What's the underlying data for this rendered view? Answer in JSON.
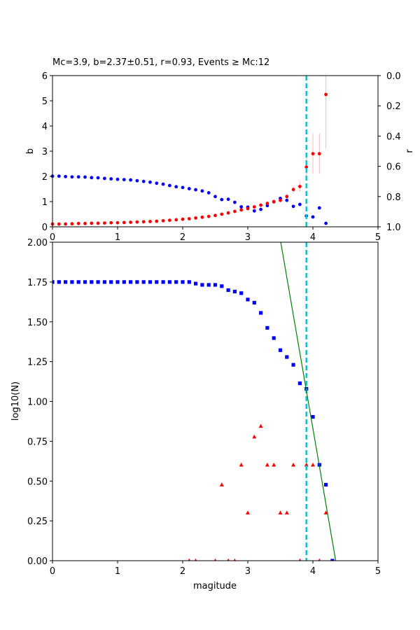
{
  "chart_data": [
    {
      "type": "scatter",
      "title": "Mc=3.9, b=2.37±0.51, r=0.93, Events ≥ Mc:12",
      "xlabel": "",
      "ylabel": "b",
      "ylabel_right": "r",
      "xlim": [
        0,
        5
      ],
      "ylim": [
        0,
        6
      ],
      "ylim_right": [
        1.0,
        0.0
      ],
      "x_ticks": [
        "0",
        "1",
        "2",
        "3",
        "4",
        "5"
      ],
      "y_ticks": [
        "0",
        "1",
        "2",
        "3",
        "4",
        "5",
        "6"
      ],
      "y_right_ticks": [
        "0.0",
        "0.2",
        "0.4",
        "0.6",
        "0.8",
        "1.0"
      ],
      "grid": false,
      "mc": 3.9,
      "mc_line_color": "#17becf",
      "series": [
        {
          "axis": "left",
          "color": "#ff0000",
          "marker": "circle",
          "x": [
            0.0,
            0.1,
            0.2,
            0.3,
            0.4,
            0.5,
            0.6,
            0.7,
            0.8,
            0.9,
            1.0,
            1.1,
            1.2,
            1.3,
            1.4,
            1.5,
            1.6,
            1.7,
            1.8,
            1.9,
            2.0,
            2.1,
            2.2,
            2.3,
            2.4,
            2.5,
            2.6,
            2.7,
            2.8,
            2.9,
            3.0,
            3.1,
            3.2,
            3.3,
            3.4,
            3.5,
            3.6,
            3.7,
            3.8,
            3.9,
            4.0,
            4.1,
            4.2
          ],
          "y": [
            0.11,
            0.11,
            0.11,
            0.12,
            0.13,
            0.13,
            0.14,
            0.14,
            0.15,
            0.16,
            0.16,
            0.17,
            0.18,
            0.19,
            0.2,
            0.21,
            0.22,
            0.24,
            0.26,
            0.28,
            0.3,
            0.32,
            0.35,
            0.38,
            0.41,
            0.45,
            0.5,
            0.55,
            0.61,
            0.67,
            0.72,
            0.79,
            0.86,
            0.93,
            1.0,
            1.05,
            1.2,
            1.48,
            1.6,
            2.37,
            2.9,
            2.9,
            5.25
          ],
          "err": [
            0,
            0,
            0,
            0,
            0,
            0,
            0,
            0,
            0,
            0,
            0,
            0,
            0,
            0,
            0,
            0,
            0,
            0,
            0,
            0,
            0,
            0,
            0,
            0,
            0,
            0,
            0.03,
            0.03,
            0.04,
            0.04,
            0.05,
            0.05,
            0.06,
            0.06,
            0.07,
            0.08,
            0.1,
            0.15,
            0.2,
            0.51,
            0.8,
            0.8,
            2.15
          ]
        },
        {
          "axis": "right",
          "color": "#0000ff",
          "marker": "circle",
          "x": [
            0.0,
            0.1,
            0.2,
            0.3,
            0.4,
            0.5,
            0.6,
            0.7,
            0.8,
            0.9,
            1.0,
            1.1,
            1.2,
            1.3,
            1.4,
            1.5,
            1.6,
            1.7,
            1.8,
            1.9,
            2.0,
            2.1,
            2.2,
            2.3,
            2.4,
            2.5,
            2.6,
            2.7,
            2.8,
            2.9,
            3.0,
            3.1,
            3.2,
            3.3,
            3.4,
            3.5,
            3.6,
            3.7,
            3.8,
            3.9,
            4.0,
            4.1,
            4.2
          ],
          "y": [
            0.665,
            0.665,
            0.668,
            0.67,
            0.67,
            0.671,
            0.675,
            0.676,
            0.68,
            0.683,
            0.686,
            0.688,
            0.69,
            0.695,
            0.7,
            0.705,
            0.712,
            0.718,
            0.727,
            0.735,
            0.74,
            0.748,
            0.755,
            0.763,
            0.775,
            0.8,
            0.82,
            0.818,
            0.838,
            0.868,
            0.87,
            0.895,
            0.885,
            0.86,
            0.835,
            0.812,
            0.825,
            0.865,
            0.852,
            0.928,
            0.935,
            0.875,
            0.977
          ]
        }
      ]
    },
    {
      "type": "scatter",
      "title": "",
      "xlabel": "magitude",
      "ylabel": "log10(N)",
      "xlim": [
        0,
        5
      ],
      "ylim": [
        0,
        2
      ],
      "x_ticks": [
        "0",
        "1",
        "2",
        "3",
        "4",
        "5"
      ],
      "y_ticks": [
        "0.00",
        "0.25",
        "0.50",
        "0.75",
        "1.00",
        "1.25",
        "1.50",
        "1.75",
        "2.00"
      ],
      "grid": false,
      "mc": 3.9,
      "mc_line_color": "#17becf",
      "fit_line": {
        "color": "#008000",
        "a": 10.31,
        "b": 2.37
      },
      "series": [
        {
          "color": "#0000ff",
          "marker": "square",
          "x": [
            0.0,
            0.1,
            0.2,
            0.3,
            0.4,
            0.5,
            0.6,
            0.7,
            0.8,
            0.9,
            1.0,
            1.1,
            1.2,
            1.3,
            1.4,
            1.5,
            1.6,
            1.7,
            1.8,
            1.9,
            2.0,
            2.1,
            2.2,
            2.3,
            2.4,
            2.5,
            2.6,
            2.7,
            2.8,
            2.9,
            3.0,
            3.1,
            3.2,
            3.3,
            3.4,
            3.5,
            3.6,
            3.7,
            3.8,
            3.9,
            4.0,
            4.1,
            4.2,
            4.3
          ],
          "y": [
            1.75,
            1.75,
            1.75,
            1.75,
            1.75,
            1.75,
            1.75,
            1.75,
            1.75,
            1.75,
            1.75,
            1.75,
            1.75,
            1.75,
            1.75,
            1.75,
            1.75,
            1.75,
            1.75,
            1.75,
            1.75,
            1.75,
            1.74,
            1.732,
            1.732,
            1.732,
            1.724,
            1.699,
            1.69,
            1.68,
            1.64,
            1.62,
            1.556,
            1.462,
            1.398,
            1.322,
            1.279,
            1.23,
            1.114,
            1.079,
            0.903,
            0.602,
            0.477,
            0.0
          ]
        },
        {
          "color": "#ff0000",
          "marker": "triangle",
          "x": [
            2.1,
            2.2,
            2.5,
            2.6,
            2.7,
            2.8,
            2.9,
            3.0,
            3.1,
            3.2,
            3.3,
            3.4,
            3.5,
            3.6,
            3.7,
            3.8,
            3.9,
            4.0,
            4.1,
            4.2
          ],
          "y": [
            0.0,
            0.0,
            0.0,
            0.477,
            0.0,
            0.0,
            0.602,
            0.301,
            0.778,
            0.845,
            0.602,
            0.602,
            0.301,
            0.301,
            0.602,
            0.0,
            0.602,
            0.602,
            0.0,
            0.301
          ]
        }
      ]
    }
  ]
}
